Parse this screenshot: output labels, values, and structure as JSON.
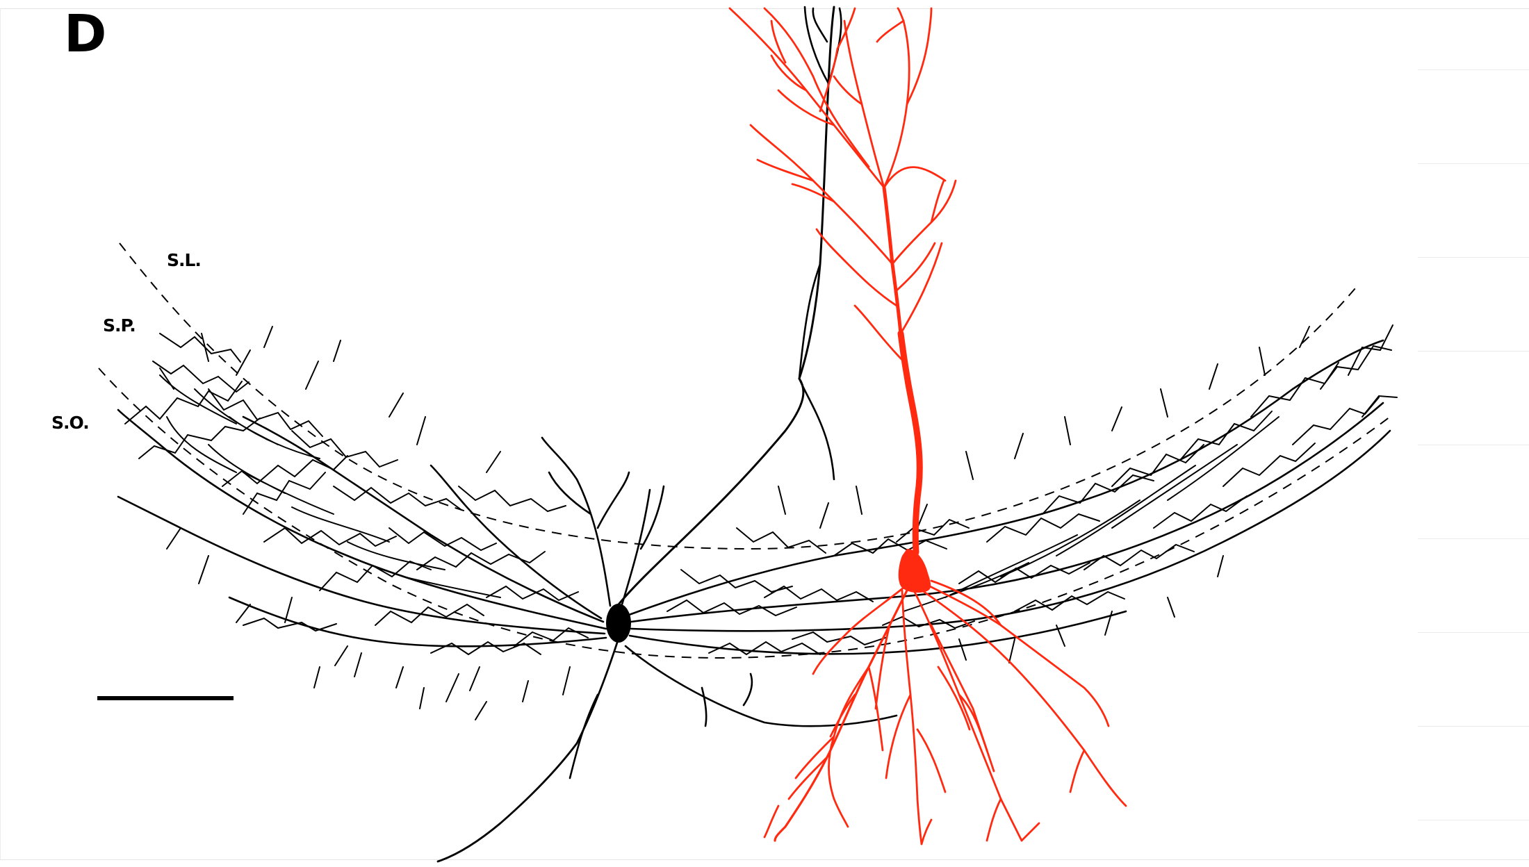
{
  "figure": {
    "panel_letter": "D",
    "layers": {
      "sl": "S.L.",
      "sp": "S.P.",
      "so": "S.O."
    },
    "colors": {
      "ink": "#000000",
      "highlight_neuron": "#ff2a10",
      "background": "#ffffff"
    }
  }
}
